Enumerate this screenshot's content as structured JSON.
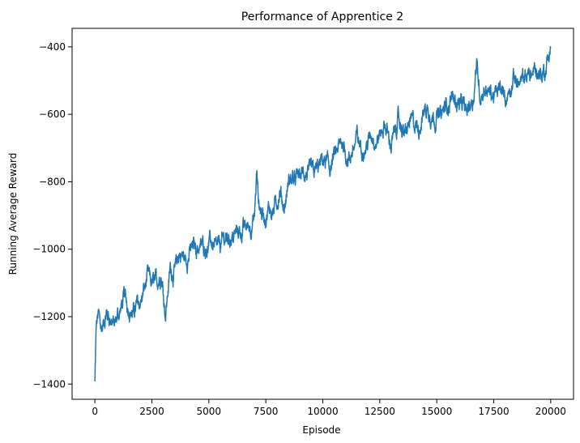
{
  "chart_data": {
    "type": "line",
    "title": "Performance of Apprentice 2",
    "xlabel": "Episode",
    "ylabel": "Running Average Reward",
    "xlim": [
      -1000,
      21000
    ],
    "ylim": [
      -1445,
      -345
    ],
    "xticks": [
      0,
      2500,
      5000,
      7500,
      10000,
      12500,
      15000,
      17500,
      20000
    ],
    "yticks": [
      -1400,
      -1200,
      -1000,
      -800,
      -600,
      -400
    ],
    "grid": false,
    "legend": "none",
    "series": [
      {
        "color": "#1f77b4",
        "x": [
          0,
          60,
          150,
          300,
          500,
          700,
          900,
          1100,
          1300,
          1500,
          1700,
          1900,
          2100,
          2300,
          2500,
          2700,
          2900,
          3100,
          3300,
          3500,
          3700,
          4000,
          4300,
          4600,
          5000,
          5400,
          5800,
          6200,
          6600,
          7000,
          7100,
          7200,
          7500,
          7800,
          8100,
          8300,
          8500,
          8800,
          9100,
          9400,
          9700,
          10000,
          10300,
          10600,
          10900,
          11200,
          11500,
          11800,
          12100,
          12400,
          12700,
          13000,
          13300,
          13600,
          13900,
          14200,
          14500,
          14800,
          15100,
          15400,
          15700,
          16000,
          16300,
          16600,
          16750,
          16900,
          17200,
          17500,
          17800,
          18100,
          18400,
          18700,
          19000,
          19300,
          19600,
          19800,
          20000
        ],
        "y": [
          -1395,
          -1240,
          -1200,
          -1230,
          -1200,
          -1215,
          -1240,
          -1205,
          -1170,
          -1180,
          -1200,
          -1160,
          -1130,
          -1080,
          -1110,
          -1100,
          -1060,
          -1170,
          -1040,
          -1050,
          -1000,
          -1030,
          -990,
          -980,
          -960,
          -970,
          -940,
          -920,
          -910,
          -890,
          -760,
          -870,
          -900,
          -880,
          -840,
          -900,
          -830,
          -810,
          -790,
          -820,
          -780,
          -760,
          -780,
          -740,
          -720,
          -760,
          -690,
          -730,
          -680,
          -700,
          -660,
          -720,
          -640,
          -690,
          -630,
          -670,
          -600,
          -620,
          -610,
          -580,
          -560,
          -560,
          -580,
          -520,
          -420,
          -510,
          -500,
          -540,
          -520,
          -530,
          -500,
          -510,
          -500,
          -470,
          -480,
          -460,
          -405
        ]
      }
    ]
  }
}
